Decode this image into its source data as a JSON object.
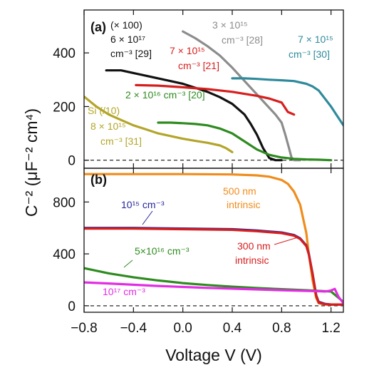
{
  "figure": {
    "ylabel": "C⁻² (μF⁻² cm⁴)",
    "xlabel": "Voltage V (V)"
  },
  "colors": {
    "black": "#111111",
    "gray": "#8c8c8c",
    "red": "#d71e1e",
    "teal": "#2f8a9c",
    "green": "#2e8b1f",
    "olive": "#b3a52a",
    "orange": "#f08c1c",
    "navy": "#26269a",
    "magenta": "#e32de3"
  },
  "chart_data": [
    {
      "type": "line",
      "panel": "(a)",
      "xlabel": "Voltage V (V)",
      "ylabel": "C⁻² (μF⁻² cm⁴)",
      "xlim": [
        -0.8,
        1.3
      ],
      "ylim": [
        -30,
        560
      ],
      "xticks": [
        -0.8,
        -0.4,
        0.0,
        0.4,
        0.8,
        1.2
      ],
      "xtick_labels": [
        "−0.8",
        "−0.4",
        "0.0",
        "0.4",
        "0.8",
        "1.2"
      ],
      "yticks": [
        0,
        200,
        400
      ],
      "ytick_labels": [
        "0",
        "200",
        "400"
      ],
      "zero_line": "dashed",
      "series": [
        {
          "color": "black",
          "x": [
            -0.62,
            -0.5,
            -0.4,
            -0.3,
            -0.2,
            -0.1,
            0.0,
            0.1,
            0.2,
            0.3,
            0.4,
            0.5,
            0.55,
            0.6,
            0.65,
            0.7,
            0.75,
            0.8
          ],
          "y": [
            335,
            335,
            325,
            315,
            305,
            295,
            285,
            270,
            255,
            235,
            210,
            170,
            135,
            95,
            45,
            8,
            0,
            0
          ]
        },
        {
          "color": "gray",
          "x": [
            0.0,
            0.1,
            0.2,
            0.3,
            0.4,
            0.5,
            0.6,
            0.7,
            0.75,
            0.8,
            0.83,
            0.86,
            0.88,
            0.9,
            0.95
          ],
          "y": [
            480,
            455,
            425,
            390,
            345,
            295,
            245,
            195,
            170,
            140,
            95,
            45,
            10,
            0,
            0
          ]
        },
        {
          "color": "red",
          "x": [
            -0.38,
            -0.2,
            0.0,
            0.2,
            0.4,
            0.6,
            0.7,
            0.8,
            0.85,
            0.9
          ],
          "y": [
            280,
            278,
            272,
            265,
            255,
            240,
            230,
            215,
            180,
            170
          ]
        },
        {
          "color": "teal",
          "x": [
            0.4,
            0.5,
            0.6,
            0.7,
            0.8,
            0.9,
            1.0,
            1.05,
            1.1,
            1.15,
            1.2,
            1.25,
            1.3
          ],
          "y": [
            305,
            305,
            303,
            300,
            298,
            295,
            285,
            275,
            260,
            230,
            200,
            165,
            130
          ]
        },
        {
          "color": "green",
          "x": [
            -0.2,
            -0.1,
            0.0,
            0.1,
            0.2,
            0.3,
            0.4,
            0.5,
            0.6,
            0.7,
            0.8,
            0.9,
            1.0,
            1.1,
            1.2
          ],
          "y": [
            140,
            140,
            138,
            135,
            130,
            118,
            100,
            70,
            40,
            20,
            10,
            5,
            3,
            2,
            0
          ]
        },
        {
          "color": "olive",
          "x": [
            -0.8,
            -0.7,
            -0.6,
            -0.5,
            -0.4,
            -0.3,
            -0.2,
            -0.1,
            0.0,
            0.1,
            0.2,
            0.3,
            0.35,
            0.4
          ],
          "y": [
            237,
            200,
            170,
            150,
            130,
            115,
            100,
            90,
            80,
            72,
            65,
            55,
            45,
            30
          ]
        }
      ],
      "annotations": [
        {
          "text": "(× 100)",
          "color": "black"
        },
        {
          "text": "6 × 10¹⁷",
          "color": "black"
        },
        {
          "text": "cm⁻³ [29]",
          "color": "black"
        },
        {
          "text": "3 × 10¹⁵",
          "color": "gray"
        },
        {
          "text": "cm⁻³ [28]",
          "color": "gray"
        },
        {
          "text": "7 × 10¹⁵",
          "color": "red"
        },
        {
          "text": "cm⁻³ [21]",
          "color": "red"
        },
        {
          "text": "7 × 10¹⁵",
          "color": "teal"
        },
        {
          "text": "cm⁻³ [30]",
          "color": "teal"
        },
        {
          "text": "2 × 10¹⁶ cm⁻³ [20]",
          "color": "green"
        },
        {
          "text": "Si (/10)",
          "color": "olive"
        },
        {
          "text": "8 × 10¹⁵",
          "color": "olive"
        },
        {
          "text": "cm⁻³ [31]",
          "color": "olive"
        }
      ]
    },
    {
      "type": "line",
      "panel": "(b)",
      "xlabel": "Voltage V (V)",
      "ylabel": "C⁻² (μF⁻² cm⁴)",
      "xlim": [
        -0.8,
        1.3
      ],
      "ylim": [
        -50,
        1060
      ],
      "xticks": [
        -0.8,
        -0.4,
        0.0,
        0.4,
        0.8,
        1.2
      ],
      "xtick_labels": [
        "−0.8",
        "−0.4",
        "0.0",
        "0.4",
        "0.8",
        "1.2"
      ],
      "yticks": [
        0,
        400,
        800
      ],
      "ytick_labels": [
        "0",
        "400",
        "800"
      ],
      "zero_line": "dashed",
      "series": [
        {
          "color": "orange",
          "x": [
            -0.8,
            -0.4,
            0.0,
            0.4,
            0.6,
            0.7,
            0.8,
            0.85,
            0.9,
            0.95,
            1.0,
            1.02,
            1.05,
            1.08,
            1.1,
            1.15,
            1.2,
            1.3
          ],
          "y": [
            1015,
            1015,
            1015,
            1012,
            1005,
            995,
            970,
            940,
            880,
            780,
            560,
            400,
            200,
            60,
            20,
            10,
            10,
            10
          ]
        },
        {
          "color": "navy",
          "x": [
            -0.8,
            -0.4,
            0.0,
            0.4,
            0.6,
            0.8,
            0.9,
            0.95,
            1.0,
            1.02,
            1.05,
            1.08,
            1.1,
            1.15,
            1.2,
            1.3
          ],
          "y": [
            600,
            600,
            595,
            590,
            580,
            565,
            545,
            520,
            465,
            400,
            250,
            80,
            30,
            15,
            10,
            10
          ]
        },
        {
          "color": "red",
          "x": [
            -0.8,
            -0.4,
            0.0,
            0.4,
            0.6,
            0.8,
            0.9,
            0.95,
            1.0,
            1.02,
            1.05,
            1.08,
            1.1,
            1.15,
            1.2,
            1.3
          ],
          "y": [
            595,
            595,
            590,
            585,
            575,
            560,
            540,
            515,
            460,
            395,
            245,
            75,
            25,
            12,
            10,
            10
          ]
        },
        {
          "color": "green",
          "x": [
            -0.8,
            -0.6,
            -0.4,
            -0.2,
            0.0,
            0.2,
            0.4,
            0.6,
            0.8,
            1.0,
            1.2,
            1.25,
            1.3
          ],
          "y": [
            290,
            250,
            220,
            195,
            175,
            160,
            147,
            137,
            128,
            120,
            110,
            70,
            30
          ]
        },
        {
          "color": "magenta",
          "x": [
            -0.8,
            -0.6,
            -0.4,
            -0.2,
            0.0,
            0.2,
            0.4,
            0.6,
            0.8,
            1.0,
            1.1,
            1.15,
            1.2,
            1.23,
            1.26,
            1.3
          ],
          "y": [
            180,
            172,
            162,
            153,
            145,
            138,
            132,
            126,
            120,
            115,
            112,
            110,
            118,
            130,
            70,
            20
          ]
        }
      ],
      "annotations": [
        {
          "text": "500 nm",
          "color": "orange"
        },
        {
          "text": "intrinsic",
          "color": "orange"
        },
        {
          "text": "10¹⁵ cm⁻³",
          "color": "navy"
        },
        {
          "text": "300 nm",
          "color": "red"
        },
        {
          "text": "intrinsic",
          "color": "red"
        },
        {
          "text": "5×10¹⁶ cm⁻³",
          "color": "green"
        },
        {
          "text": "10¹⁷ cm⁻³",
          "color": "magenta"
        }
      ]
    }
  ]
}
